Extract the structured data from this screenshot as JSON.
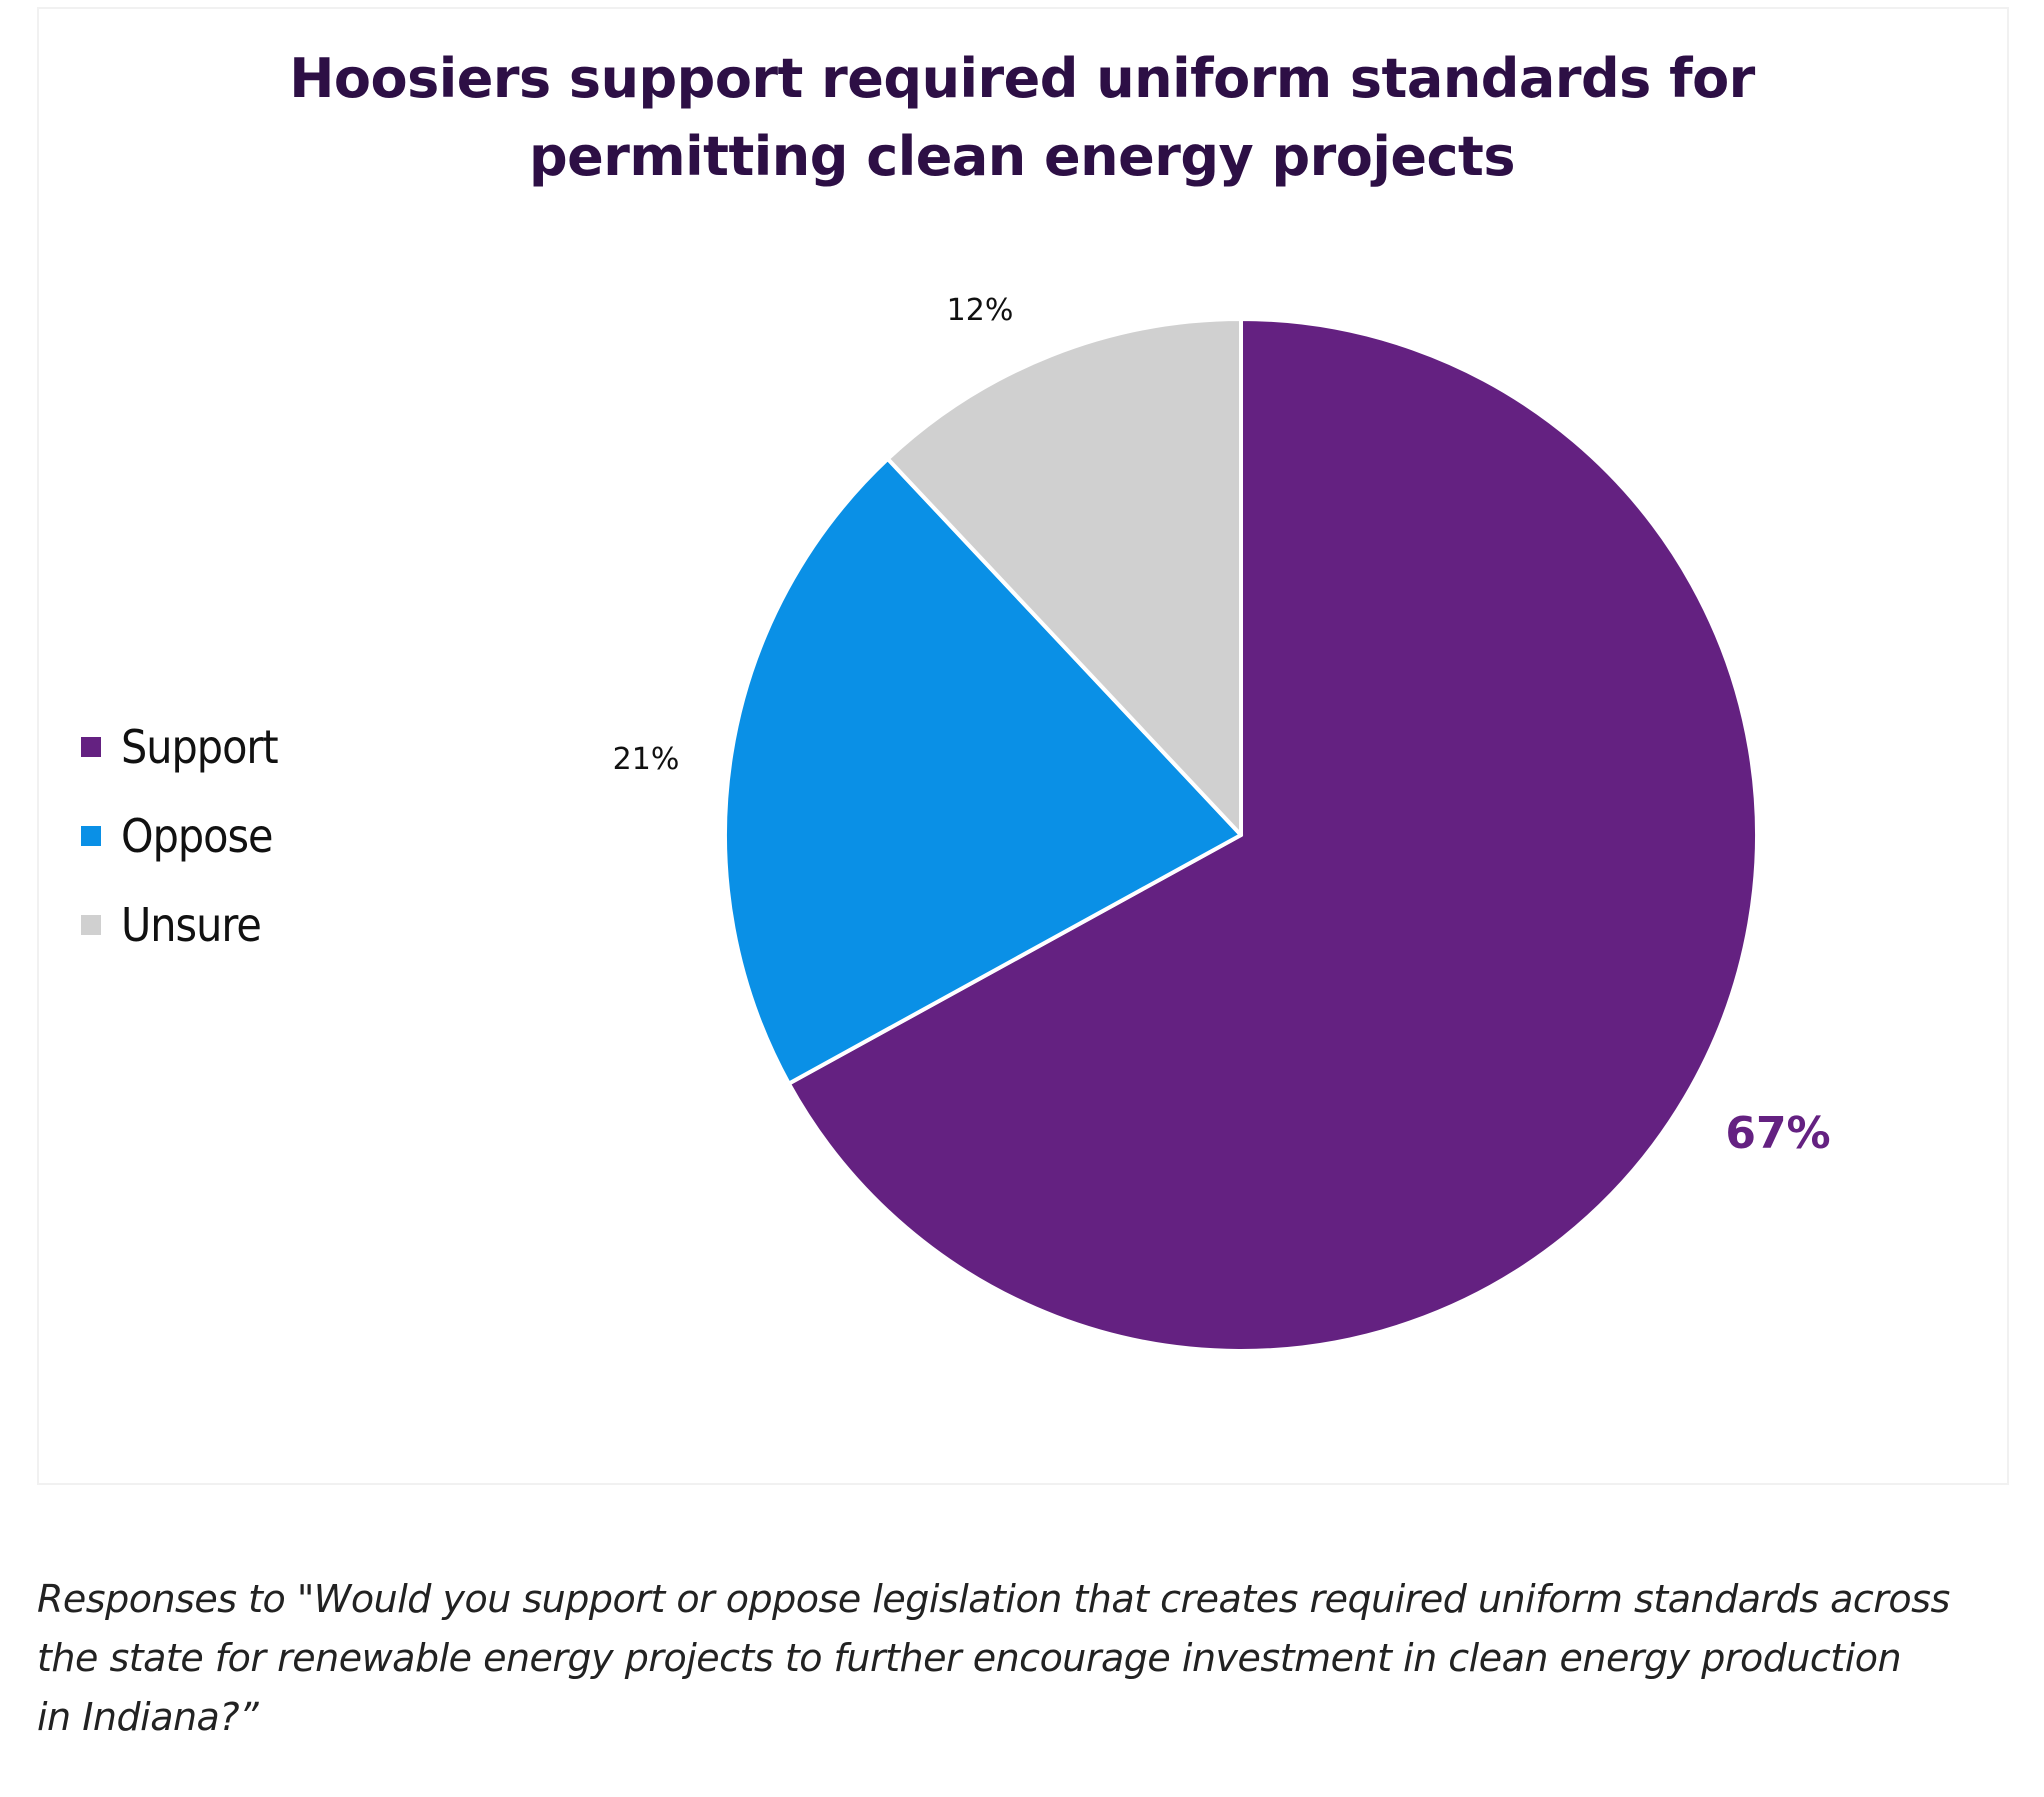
{
  "chart_data": {
    "type": "pie",
    "title": [
      "Hoosiers support required uniform standards for",
      "permitting clean energy projects"
    ],
    "categories": [
      "Support",
      "Oppose",
      "Unsure"
    ],
    "values": [
      67,
      21,
      12
    ],
    "data_labels": [
      "67%",
      "21%",
      "12%"
    ],
    "colors": [
      "#642181",
      "#0a90e6",
      "#d0d0d0"
    ],
    "start_angle": "12 o'clock, clockwise",
    "legend": {
      "placement": "left",
      "entries": [
        "Support",
        "Oppose",
        "Unsure"
      ]
    }
  },
  "caption": [
    "Responses to \"Would you support or oppose legislation that creates required uniform standards across",
    "the state for renewable energy projects to further encourage investment in clean energy production",
    "in Indiana?”"
  ]
}
